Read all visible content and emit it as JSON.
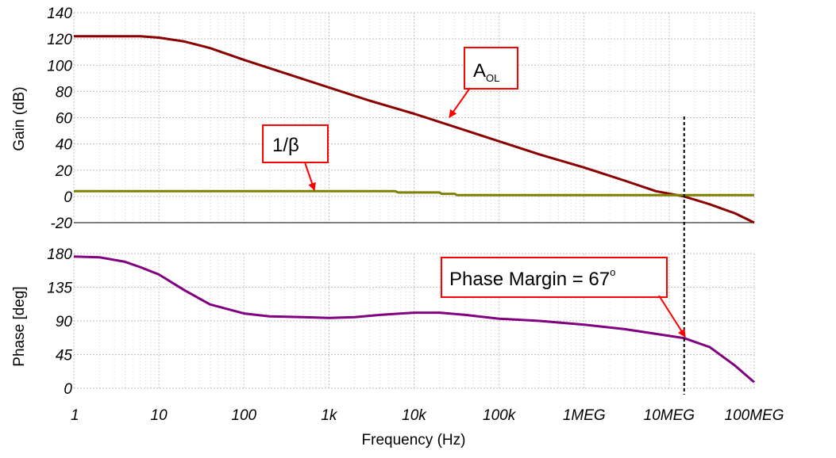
{
  "chart_data": [
    {
      "type": "line",
      "title": "",
      "xlabel": "Frequency (Hz)",
      "ylabel": "Gain (dB)",
      "x_scale": "log",
      "xlim": [
        1,
        100000000
      ],
      "ylim": [
        -20,
        140
      ],
      "x_ticks": [
        1,
        10,
        100,
        1000,
        10000,
        100000,
        1000000,
        10000000,
        100000000
      ],
      "x_tick_labels": [
        "1",
        "10",
        "100",
        "1k",
        "10k",
        "100k",
        "1MEG",
        "10MEG",
        "100MEG"
      ],
      "y_ticks": [
        -20,
        0,
        20,
        40,
        60,
        80,
        100,
        120,
        140
      ],
      "y_tick_labels": [
        "-20",
        "0",
        "20",
        "40",
        "60",
        "80",
        "100",
        "120",
        "140"
      ],
      "grid": true,
      "series": [
        {
          "name": "AOL",
          "color": "#8b0000",
          "points": [
            [
              1,
              122
            ],
            [
              3,
              122
            ],
            [
              6,
              122
            ],
            [
              10,
              121
            ],
            [
              20,
              118
            ],
            [
              40,
              113
            ],
            [
              100,
              104
            ],
            [
              300,
              94
            ],
            [
              1000,
              83
            ],
            [
              3000,
              73
            ],
            [
              10000,
              63
            ],
            [
              30000,
              53
            ],
            [
              100000,
              42
            ],
            [
              300000,
              32
            ],
            [
              1000000,
              22
            ],
            [
              3000000,
              12
            ],
            [
              7000000,
              4
            ],
            [
              15000000,
              0
            ],
            [
              30000000,
              -6
            ],
            [
              60000000,
              -13
            ],
            [
              100000000,
              -20
            ]
          ]
        },
        {
          "name": "1/β",
          "color": "#808000",
          "points": [
            [
              1,
              4
            ],
            [
              6000,
              4
            ],
            [
              6500,
              3
            ],
            [
              20000,
              3
            ],
            [
              21000,
              2
            ],
            [
              30000,
              2
            ],
            [
              32000,
              1
            ],
            [
              100000000,
              1
            ]
          ]
        }
      ]
    },
    {
      "type": "line",
      "title": "",
      "xlabel": "Frequency (Hz)",
      "ylabel": "Phase [deg]",
      "x_scale": "log",
      "xlim": [
        1,
        100000000
      ],
      "ylim": [
        0,
        180
      ],
      "x_ticks": [
        1,
        10,
        100,
        1000,
        10000,
        100000,
        1000000,
        10000000,
        100000000
      ],
      "x_tick_labels": [
        "1",
        "10",
        "100",
        "1k",
        "10k",
        "100k",
        "1MEG",
        "10MEG",
        "100MEG"
      ],
      "y_ticks": [
        0,
        45,
        90,
        135,
        180
      ],
      "y_tick_labels": [
        "0",
        "45",
        "90",
        "135",
        "180"
      ],
      "grid": true,
      "series": [
        {
          "name": "",
          "color": "#800080",
          "points": [
            [
              1,
              176
            ],
            [
              2,
              175
            ],
            [
              4,
              169
            ],
            [
              6,
              162
            ],
            [
              10,
              152
            ],
            [
              20,
              131
            ],
            [
              40,
              112
            ],
            [
              100,
              100
            ],
            [
              200,
              96
            ],
            [
              500,
              95
            ],
            [
              1000,
              94
            ],
            [
              2000,
              95
            ],
            [
              4000,
              98
            ],
            [
              10000,
              101
            ],
            [
              20000,
              101
            ],
            [
              40000,
              98
            ],
            [
              100000,
              93
            ],
            [
              300000,
              90
            ],
            [
              1000000,
              85
            ],
            [
              3000000,
              79
            ],
            [
              10000000,
              70
            ],
            [
              15000000,
              67
            ],
            [
              30000000,
              55
            ],
            [
              60000000,
              30
            ],
            [
              100000000,
              8
            ]
          ]
        }
      ]
    }
  ],
  "annotations": {
    "aol_label": "A",
    "aol_sub": "OL",
    "beta_label": "1/β",
    "phase_margin_label": "Phase Margin = 67",
    "phase_margin_sup": "o",
    "crossover_frequency": 15000000,
    "annotation_color": "#ff0000"
  }
}
